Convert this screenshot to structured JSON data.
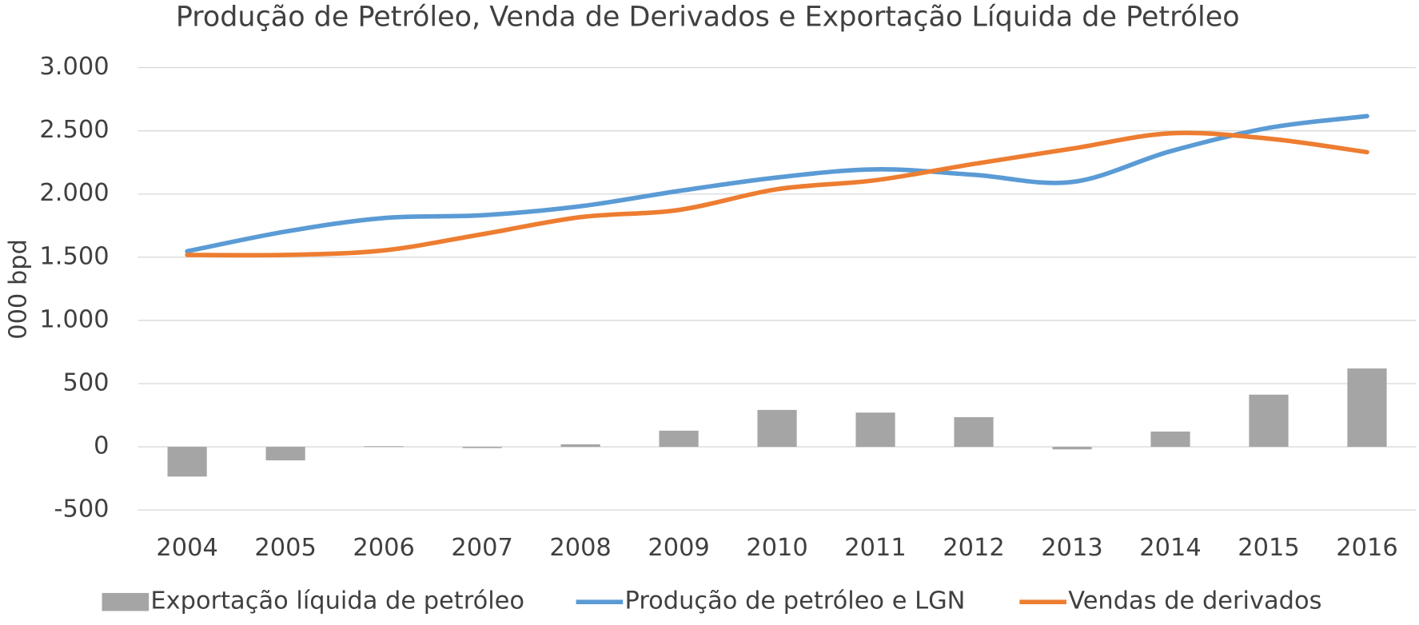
{
  "chart_data": {
    "type": "bar-line",
    "title": "Produção de Petróleo, Venda de Derivados e Exportação Líquida de Petróleo",
    "y_label": "000 bpd",
    "categories": [
      "2004",
      "2005",
      "2006",
      "2007",
      "2008",
      "2009",
      "2010",
      "2011",
      "2012",
      "2013",
      "2014",
      "2015",
      "2016"
    ],
    "series": [
      {
        "name": "Exportação líquida de petróleo",
        "type": "bar",
        "color": "#a5a5a5",
        "values": [
          -235,
          -107,
          5,
          -10,
          20,
          128,
          292,
          271,
          235,
          -20,
          121,
          413,
          620
        ]
      },
      {
        "name": "Produção de petróleo e LGN",
        "type": "line",
        "color": "#5b9bd5",
        "values": [
          1547,
          1703,
          1810,
          1832,
          1903,
          2024,
          2131,
          2195,
          2152,
          2095,
          2338,
          2523,
          2616
        ]
      },
      {
        "name": "Vendas de derivados",
        "type": "line",
        "color": "#ed7d31",
        "values": [
          1518,
          1518,
          1554,
          1682,
          1817,
          1874,
          2038,
          2109,
          2238,
          2359,
          2480,
          2438,
          2331
        ]
      }
    ],
    "ylim": [
      -500,
      3000
    ],
    "yticks": [
      -500,
      0,
      500,
      {
        "value": 1000,
        "label": "1.000"
      },
      {
        "value": 1500,
        "label": "1.500"
      },
      {
        "value": 2000,
        "label": "2.000"
      },
      {
        "value": 2500,
        "label": "2.500"
      },
      {
        "value": 3000,
        "label": "3.000"
      }
    ],
    "grid": true,
    "smooth": true,
    "legend": "bottom"
  }
}
